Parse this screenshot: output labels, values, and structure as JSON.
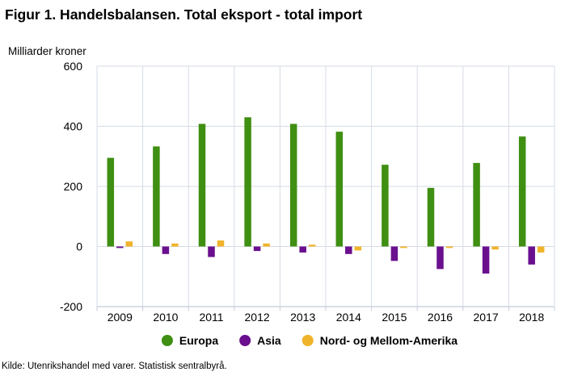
{
  "header": {
    "title": "Figur 1. Handelsbalansen. Total eksport - total import",
    "y_unit_label": "Milliarder kroner"
  },
  "footer": {
    "source": "Kilde: Utenrikshandel med varer. Statistisk sentralbyrå."
  },
  "colors": {
    "europa": "#3f8f12",
    "asia": "#6a0f8e",
    "amerika": "#f0b42a",
    "grid": "#d5dbe5",
    "axis": "#c4ccd8"
  },
  "chart_data": {
    "type": "bar",
    "title": "Figur 1. Handelsbalansen. Total eksport - total import",
    "xlabel": "",
    "ylabel": "Milliarder kroner",
    "ylim": [
      -200,
      600
    ],
    "yticks": [
      600,
      400,
      200,
      0,
      -200
    ],
    "grid": true,
    "legend_position": "bottom",
    "categories": [
      "2009",
      "2010",
      "2011",
      "2012",
      "2013",
      "2014",
      "2015",
      "2016",
      "2017",
      "2018"
    ],
    "series": [
      {
        "name": "Europa",
        "color": "#3f8f12",
        "values": [
          295,
          333,
          408,
          430,
          408,
          382,
          272,
          195,
          278,
          366
        ]
      },
      {
        "name": "Asia",
        "color": "#6a0f8e",
        "values": [
          -5,
          -25,
          -35,
          -15,
          -20,
          -25,
          -48,
          -75,
          -90,
          -60
        ]
      },
      {
        "name": "Nord- og Mellom-Amerika",
        "color": "#f0b42a",
        "values": [
          17,
          10,
          20,
          10,
          6,
          -13,
          -5,
          -5,
          -10,
          -20
        ]
      }
    ]
  }
}
